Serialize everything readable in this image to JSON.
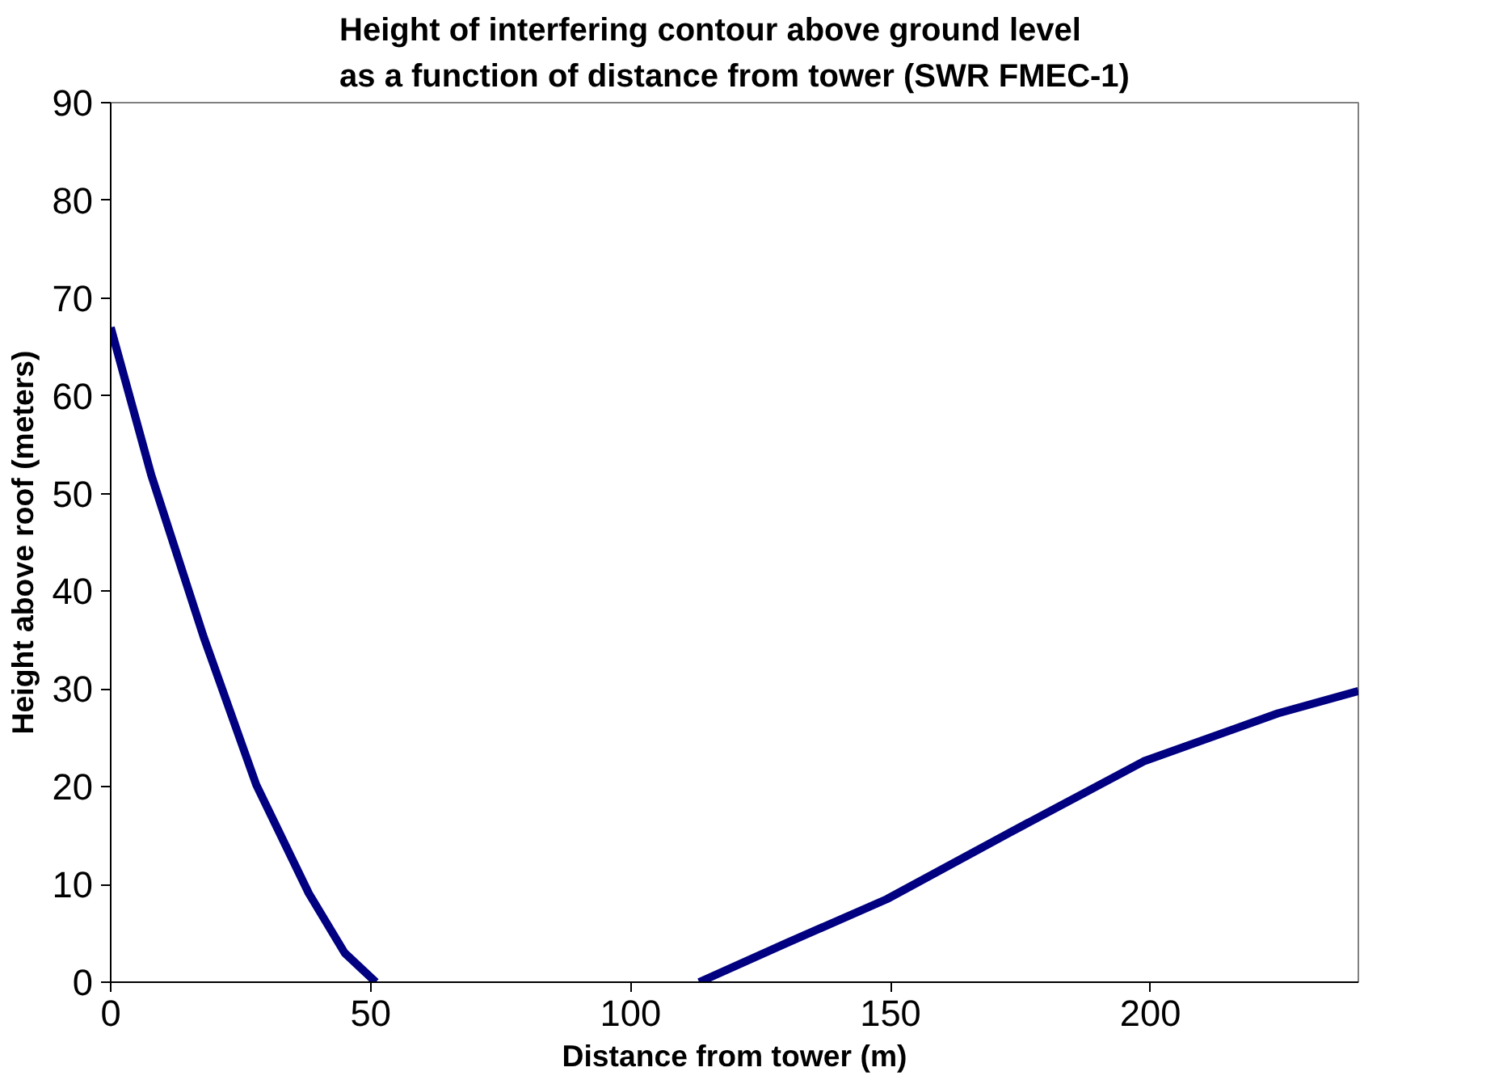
{
  "chart_data": {
    "type": "line",
    "title": "Height of interfering contour above ground level\nas a function of distance from tower (SWR FMEC-1)",
    "xlabel": "Distance from tower (m)",
    "ylabel": "Height above roof (meters)",
    "x": [
      0,
      7.8,
      17.9,
      28,
      38.1,
      45,
      51,
      80,
      113.2,
      130,
      149.3,
      172.9,
      198.7,
      224.5,
      240
    ],
    "series": [
      {
        "color": "#000080",
        "values": [
          67,
          51.9,
          35.3,
          20.2,
          9.1,
          3,
          0,
          null,
          0,
          4,
          8.5,
          15.3,
          22.6,
          27.5,
          29.8
        ]
      }
    ],
    "xlim": [
      0,
      240
    ],
    "xticks": [
      0,
      50,
      100,
      150,
      200
    ],
    "ylim": [
      0,
      90
    ],
    "yticks": [
      0,
      10,
      20,
      30,
      40,
      50,
      60,
      70,
      80,
      90
    ],
    "grid": false,
    "line_style": "solid",
    "marker": "none"
  }
}
